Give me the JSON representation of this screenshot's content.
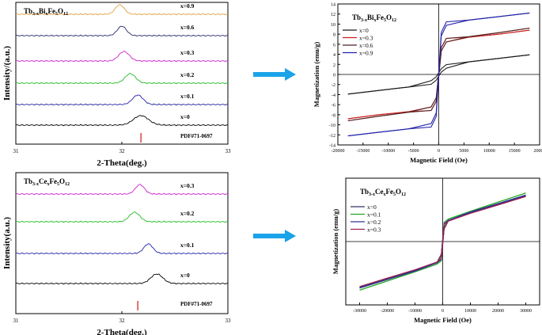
{
  "chart_data": [
    {
      "id": "xrd_bi",
      "type": "line",
      "chart_kind": "stacked-offset XRD patterns",
      "title": "Tb3-xBixFe5O12",
      "title_parts": {
        "p1": "Tb",
        "s1": "3-x",
        "p2": "Bi",
        "s2": "x",
        "p3": "Fe",
        "s3": "5",
        "p4": "O",
        "s4": "12"
      },
      "xlabel": "2-Theta(deg.)",
      "ylabel": "Intensity/(a.u.)",
      "xlim": [
        31,
        33
      ],
      "x_ticks": [
        31,
        32,
        33
      ],
      "reference": {
        "label": "PDF#71-0697",
        "x": 32.18
      },
      "series": [
        {
          "name": "x=0",
          "color": "#000000",
          "peak_x": 32.18,
          "width": 0.1
        },
        {
          "name": "x=0.1",
          "color": "#2020a0",
          "peak_x": 32.15,
          "width": 0.07
        },
        {
          "name": "x=0.2",
          "color": "#22bb22",
          "peak_x": 32.08,
          "width": 0.07
        },
        {
          "name": "x=0.3",
          "color": "#cc22cc",
          "peak_x": 32.02,
          "width": 0.07
        },
        {
          "name": "x=0.6",
          "color": "#2a2a6a",
          "peak_x": 32.0,
          "width": 0.06
        },
        {
          "name": "x=0.9",
          "color": "#e0a040",
          "peak_x": 31.98,
          "width": 0.06
        }
      ]
    },
    {
      "id": "mh_bi",
      "type": "line",
      "title": "Tb3-xBixFe5O12",
      "title_parts": {
        "p1": "Tb",
        "s1": "3-x",
        "p2": "Bi",
        "s2": "x",
        "p3": "Fe",
        "s3": "5",
        "p4": "O",
        "s4": "12"
      },
      "xlabel": "Magnetic Field (Oe)",
      "ylabel": "Magnetization (emu/g)",
      "xlim": [
        -20000,
        20000
      ],
      "ylim": [
        -14,
        14
      ],
      "x_ticks": [
        -20000,
        -15000,
        -10000,
        -5000,
        0,
        5000,
        10000,
        15000,
        20000
      ],
      "y_ticks": [
        -14,
        -12,
        -10,
        -8,
        -6,
        -4,
        -2,
        0,
        2,
        4,
        6,
        8,
        10,
        12,
        14
      ],
      "legend": "top-left",
      "series": [
        {
          "name": "x=0",
          "color": "#1a1a1a",
          "x": [
            -18000,
            -12000,
            -6000,
            -1500,
            -500,
            0,
            500,
            1500,
            6000,
            12000,
            18000
          ],
          "y": [
            -3.9,
            -3.2,
            -2.5,
            -1.6,
            -0.8,
            0,
            0.8,
            1.6,
            2.5,
            3.2,
            3.9
          ]
        },
        {
          "name": "x=0.3",
          "color": "#cc2222",
          "x": [
            -18000,
            -12000,
            -6000,
            -1500,
            -500,
            0,
            500,
            1500,
            6000,
            12000,
            18000
          ],
          "y": [
            -8.8,
            -8.0,
            -7.4,
            -6.8,
            -5.0,
            0,
            5.0,
            6.8,
            7.4,
            8.0,
            8.8
          ]
        },
        {
          "name": "x=0.6",
          "color": "#552222",
          "x": [
            -18000,
            -12000,
            -6000,
            -1500,
            -500,
            0,
            500,
            1500,
            6000,
            12000,
            18000
          ],
          "y": [
            -9.2,
            -8.3,
            -7.5,
            -6.8,
            -5.0,
            0,
            5.0,
            6.8,
            7.5,
            8.3,
            9.2
          ]
        },
        {
          "name": "x=0.9",
          "color": "#2222aa",
          "x": [
            -18000,
            -12000,
            -6000,
            -1500,
            -500,
            0,
            500,
            1500,
            6000,
            12000,
            18000
          ],
          "y": [
            -12.2,
            -11.5,
            -10.8,
            -10.1,
            -8.0,
            0,
            8.0,
            10.1,
            10.8,
            11.5,
            12.2
          ]
        }
      ]
    },
    {
      "id": "xrd_ce",
      "type": "line",
      "chart_kind": "stacked-offset XRD patterns",
      "title": "Tb3-xCexFe5O12",
      "title_parts": {
        "p1": "Tb",
        "s1": "3-x",
        "p2": "Ce",
        "s2": "x",
        "p3": "Fe",
        "s3": "5",
        "p4": "O",
        "s4": "12"
      },
      "xlabel": "2-Theta(deg.)",
      "ylabel": "Intensity(a.u.)",
      "xlim": [
        31,
        33
      ],
      "x_ticks": [
        31,
        32,
        33
      ],
      "reference": {
        "label": "PDF#71-0697",
        "x": 32.15
      },
      "series": [
        {
          "name": "x=0",
          "color": "#000000",
          "peak_x": 32.33,
          "width": 0.08
        },
        {
          "name": "x=0.1",
          "color": "#2222aa",
          "peak_x": 32.25,
          "width": 0.06
        },
        {
          "name": "x=0.2",
          "color": "#22bb22",
          "peak_x": 32.12,
          "width": 0.07
        },
        {
          "name": "x=0.3",
          "color": "#cc22cc",
          "peak_x": 32.17,
          "width": 0.06
        }
      ]
    },
    {
      "id": "mh_ce",
      "type": "line",
      "title": "Tb3-xCexFe5O12",
      "title_parts": {
        "p1": "Tb",
        "s1": "3-x",
        "p2": "Ce",
        "s2": "x",
        "p3": "Fe",
        "s3": "5",
        "p4": "O",
        "s4": "12"
      },
      "xlabel": "Magnetic Field (Oe)",
      "ylabel": "Magnetization (emu/g)",
      "xlim": [
        -35000,
        35000
      ],
      "ylim": [
        -9,
        9
      ],
      "x_ticks": [
        -30000,
        -20000,
        -10000,
        0,
        10000,
        20000,
        30000
      ],
      "legend": "top-left",
      "series": [
        {
          "name": "x=0",
          "color": "#333366",
          "x": [
            -30000,
            -20000,
            -10000,
            -2000,
            -500,
            0,
            500,
            2000,
            10000,
            20000,
            30000
          ],
          "y": [
            -6.5,
            -5.3,
            -4.1,
            -3.0,
            -2.2,
            0,
            2.2,
            3.0,
            4.1,
            5.3,
            6.5
          ]
        },
        {
          "name": "x=0.1",
          "color": "#22aa22",
          "x": [
            -30000,
            -20000,
            -10000,
            -2000,
            -500,
            0,
            500,
            2000,
            10000,
            20000,
            30000
          ],
          "y": [
            -6.9,
            -5.6,
            -4.3,
            -3.2,
            -2.4,
            0,
            2.4,
            3.2,
            4.3,
            5.6,
            6.9
          ]
        },
        {
          "name": "x=0.2",
          "color": "#333399",
          "x": [
            -30000,
            -20000,
            -10000,
            -2000,
            -500,
            0,
            500,
            2000,
            10000,
            20000,
            30000
          ],
          "y": [
            -6.6,
            -5.4,
            -4.2,
            -3.0,
            -2.2,
            0,
            2.2,
            3.0,
            4.2,
            5.4,
            6.6
          ]
        },
        {
          "name": "x=0.3",
          "color": "#992255",
          "x": [
            -30000,
            -20000,
            -10000,
            -2000,
            -500,
            0,
            500,
            2000,
            10000,
            20000,
            30000
          ],
          "y": [
            -6.4,
            -5.2,
            -4.0,
            -2.9,
            -2.1,
            0,
            2.1,
            2.9,
            4.0,
            5.2,
            6.4
          ]
        }
      ]
    }
  ],
  "arrows": [
    {
      "icon": "right-arrow-icon",
      "color": "#1aa3e8"
    },
    {
      "icon": "right-arrow-icon",
      "color": "#1aa3e8"
    }
  ]
}
